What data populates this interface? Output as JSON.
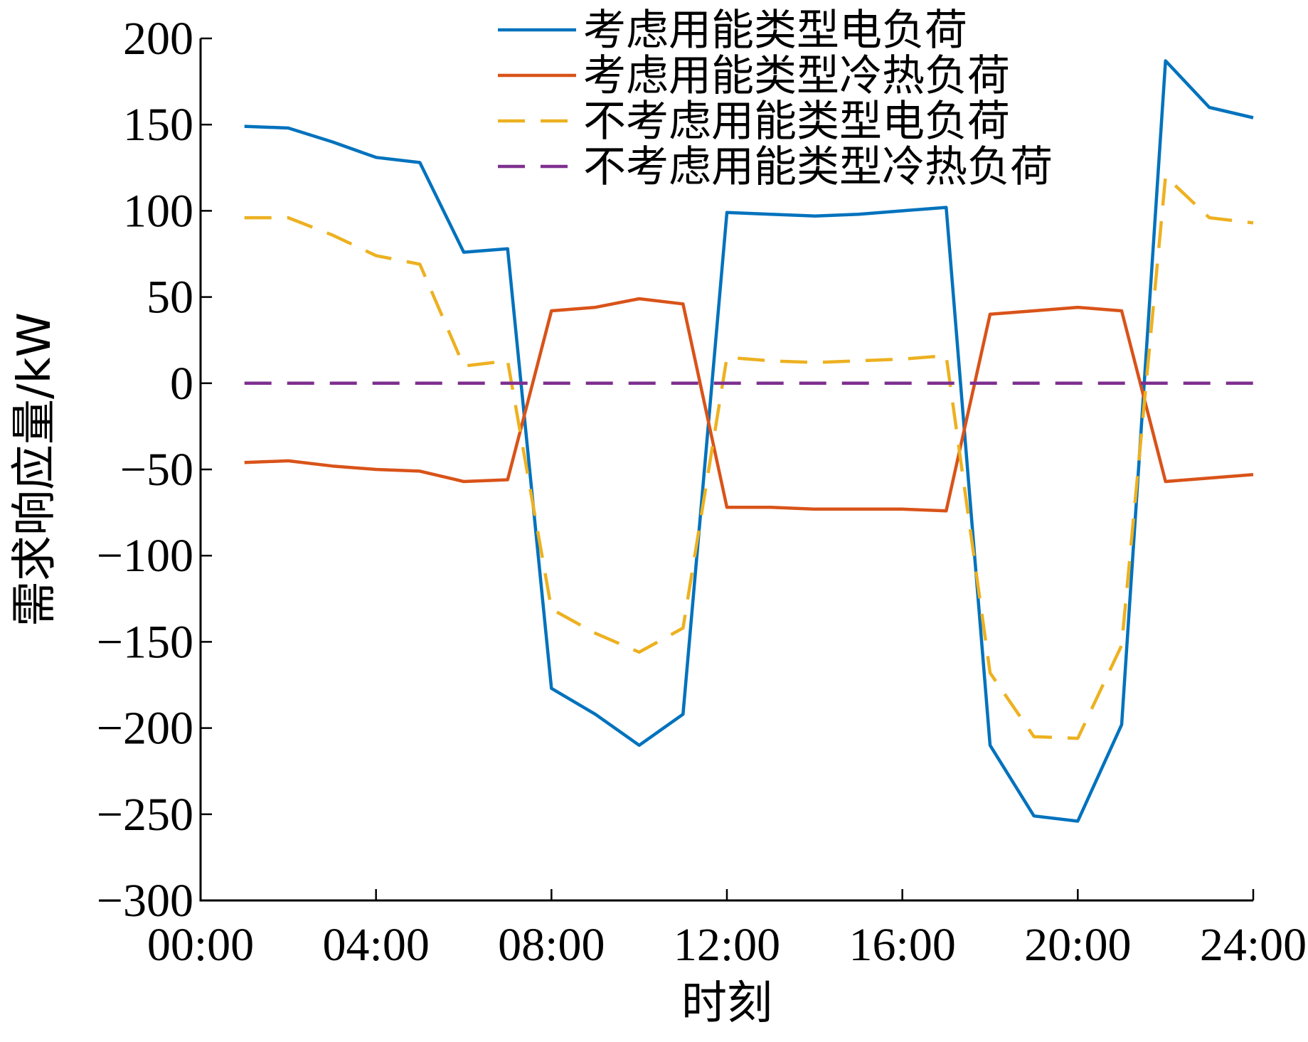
{
  "chart_data": {
    "type": "line",
    "xlabel": "时刻",
    "ylabel": "需求响应量/kW",
    "xlim": [
      0,
      24
    ],
    "ylim": [
      -300,
      200
    ],
    "xticks": [
      0,
      4,
      8,
      12,
      16,
      20,
      24
    ],
    "xtick_labels": [
      "00:00",
      "04:00",
      "08:00",
      "12:00",
      "16:00",
      "20:00",
      "24:00"
    ],
    "yticks": [
      200,
      150,
      100,
      50,
      0,
      -50,
      -100,
      -150,
      -200,
      -250,
      -300
    ],
    "ytick_labels": [
      "200",
      "150",
      "100",
      "50",
      "0",
      "−50",
      "−100",
      "−150",
      "−200",
      "−250",
      "−300"
    ],
    "legend_position": "top-right",
    "x": [
      1,
      2,
      3,
      4,
      5,
      6,
      7,
      8,
      9,
      10,
      11,
      12,
      13,
      14,
      15,
      16,
      17,
      18,
      19,
      20,
      21,
      22,
      23,
      24
    ],
    "series": [
      {
        "name": "考虑用能类型电负荷",
        "color": "#0072BD",
        "dash": "solid",
        "values": [
          149,
          148,
          140,
          131,
          128,
          76,
          78,
          -177,
          -192,
          -210,
          -192,
          99,
          98,
          97,
          98,
          100,
          102,
          -210,
          -251,
          -254,
          -198,
          187,
          160,
          154
        ]
      },
      {
        "name": "考虑用能类型冷热负荷",
        "color": "#D95319",
        "dash": "solid",
        "values": [
          -46,
          -45,
          -48,
          -50,
          -51,
          -57,
          -56,
          42,
          44,
          49,
          46,
          -72,
          -72,
          -73,
          -73,
          -73,
          -74,
          40,
          42,
          44,
          42,
          -57,
          -55,
          -53
        ]
      },
      {
        "name": "不考虑用能类型电负荷",
        "color": "#EDB120",
        "dash": "dashed",
        "values": [
          96,
          96,
          86,
          74,
          69,
          10,
          13,
          -131,
          -145,
          -156,
          -142,
          15,
          13,
          12,
          13,
          14,
          16,
          -168,
          -205,
          -206,
          -152,
          120,
          96,
          93
        ]
      },
      {
        "name": "不考虑用能类型冷热负荷",
        "color": "#7E2F8E",
        "dash": "dashed",
        "values": [
          0,
          0,
          0,
          0,
          0,
          0,
          0,
          0,
          0,
          0,
          0,
          0,
          0,
          0,
          0,
          0,
          0,
          0,
          0,
          0,
          0,
          0,
          0,
          0
        ]
      }
    ]
  }
}
